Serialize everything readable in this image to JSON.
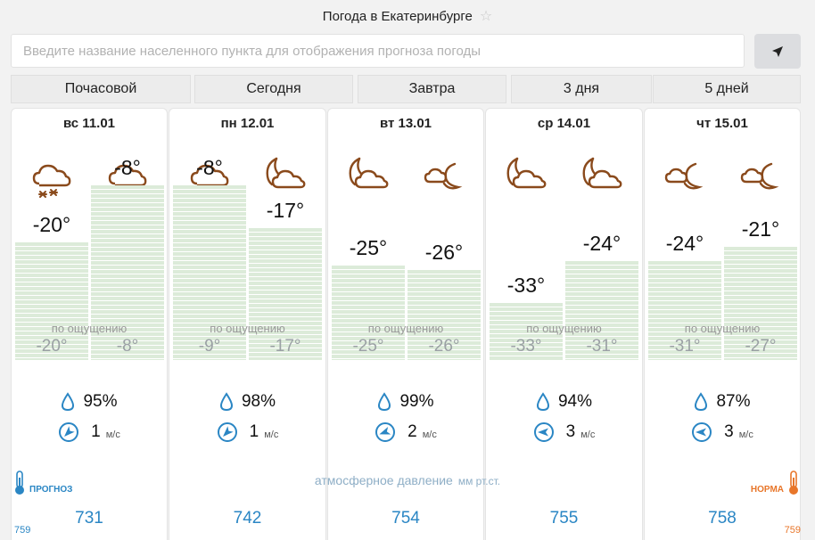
{
  "header": {
    "title": "Погода в Екатеринбурге",
    "star_icon": "star-icon"
  },
  "search": {
    "placeholder": "Введите название населенного пункта для отображения прогноза погоды",
    "locate_icon": "location-arrow-icon"
  },
  "tabs": [
    {
      "label": "Почасовой"
    },
    {
      "label": "Сегодня"
    },
    {
      "label": "Завтра"
    },
    {
      "label": "3 дня"
    },
    {
      "label": "5 дней"
    }
  ],
  "feels_label": "по ощущению",
  "wind_unit": "м/с",
  "pressure": {
    "label": "атмосферное давление",
    "unit": "мм рт.ст.",
    "forecast_label": "ПРОГНОЗ",
    "norm_label": "НОРМА",
    "scale_left": "759",
    "scale_right": "759"
  },
  "colors": {
    "icon_brown": "#8a4a1c",
    "accent_blue": "#2a86c4",
    "norm_orange": "#e8762a",
    "bar_green": "#dcebd9"
  },
  "days": [
    {
      "date": "вс 11.01",
      "icons": [
        "cloud-snow-icon",
        "cloud-snow-icon"
      ],
      "temps": [
        "-20°",
        "-8°"
      ],
      "temp_values": [
        -20,
        -8
      ],
      "feels": [
        "-20°",
        "-8°"
      ],
      "humidity": "95%",
      "wind_speed": "1",
      "wind_dir_deg": 225,
      "pressure": "731"
    },
    {
      "date": "пн 12.01",
      "icons": [
        "cloud-snow-icon",
        "moon-cloud-icon"
      ],
      "temps": [
        "-8°",
        "-17°"
      ],
      "temp_values": [
        -8,
        -17
      ],
      "feels": [
        "-9°",
        "-17°"
      ],
      "humidity": "98%",
      "wind_speed": "1",
      "wind_dir_deg": 225,
      "pressure": "742"
    },
    {
      "date": "вт 13.01",
      "icons": [
        "moon-cloud-icon",
        "cloud-moon-small-icon"
      ],
      "temps": [
        "-25°",
        "-26°"
      ],
      "temp_values": [
        -25,
        -26
      ],
      "feels": [
        "-25°",
        "-26°"
      ],
      "humidity": "99%",
      "wind_speed": "2",
      "wind_dir_deg": 250,
      "pressure": "754"
    },
    {
      "date": "ср 14.01",
      "icons": [
        "moon-cloud-icon",
        "moon-cloud-icon"
      ],
      "temps": [
        "-33°",
        "-24°"
      ],
      "temp_values": [
        -33,
        -24
      ],
      "feels": [
        "-33°",
        "-31°"
      ],
      "humidity": "94%",
      "wind_speed": "3",
      "wind_dir_deg": 270,
      "pressure": "755"
    },
    {
      "date": "чт 15.01",
      "icons": [
        "cloud-moon-small-icon",
        "cloud-moon-small-icon"
      ],
      "temps": [
        "-24°",
        "-21°"
      ],
      "temp_values": [
        -24,
        -21
      ],
      "feels": [
        "-31°",
        "-27°"
      ],
      "humidity": "87%",
      "wind_speed": "3",
      "wind_dir_deg": 270,
      "pressure": "758"
    }
  ]
}
